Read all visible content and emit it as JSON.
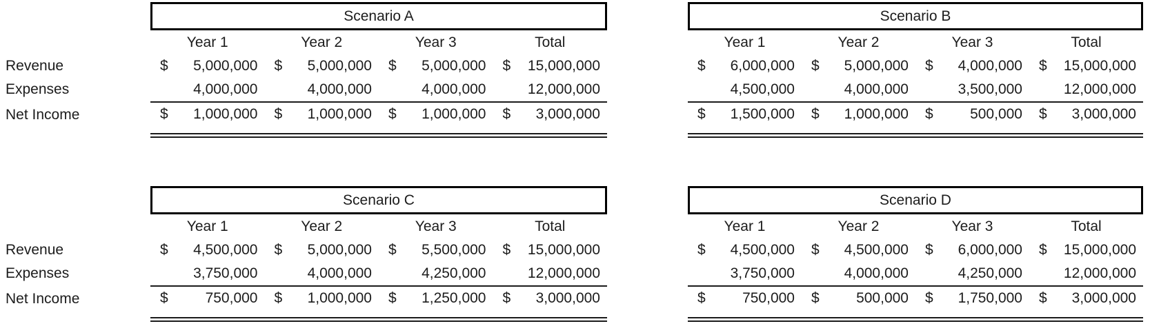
{
  "currency_symbol": "$",
  "row_labels": [
    "Revenue",
    "Expenses",
    "Net Income"
  ],
  "column_headers": [
    "Year 1",
    "Year 2",
    "Year 3",
    "Total"
  ],
  "scenarios": [
    {
      "title": "Scenario A",
      "revenue": [
        "5,000,000",
        "5,000,000",
        "5,000,000",
        "15,000,000"
      ],
      "expenses": [
        "4,000,000",
        "4,000,000",
        "4,000,000",
        "12,000,000"
      ],
      "net_income": [
        "1,000,000",
        "1,000,000",
        "1,000,000",
        "3,000,000"
      ]
    },
    {
      "title": "Scenario B",
      "revenue": [
        "6,000,000",
        "5,000,000",
        "4,000,000",
        "15,000,000"
      ],
      "expenses": [
        "4,500,000",
        "4,000,000",
        "3,500,000",
        "12,000,000"
      ],
      "net_income": [
        "1,500,000",
        "1,000,000",
        "500,000",
        "3,000,000"
      ]
    },
    {
      "title": "Scenario C",
      "revenue": [
        "4,500,000",
        "5,000,000",
        "5,500,000",
        "15,000,000"
      ],
      "expenses": [
        "3,750,000",
        "4,000,000",
        "4,250,000",
        "12,000,000"
      ],
      "net_income": [
        "750,000",
        "1,000,000",
        "1,250,000",
        "3,000,000"
      ]
    },
    {
      "title": "Scenario D",
      "revenue": [
        "4,500,000",
        "4,500,000",
        "6,000,000",
        "15,000,000"
      ],
      "expenses": [
        "3,750,000",
        "4,000,000",
        "4,250,000",
        "12,000,000"
      ],
      "net_income": [
        "750,000",
        "500,000",
        "1,750,000",
        "3,000,000"
      ]
    }
  ]
}
